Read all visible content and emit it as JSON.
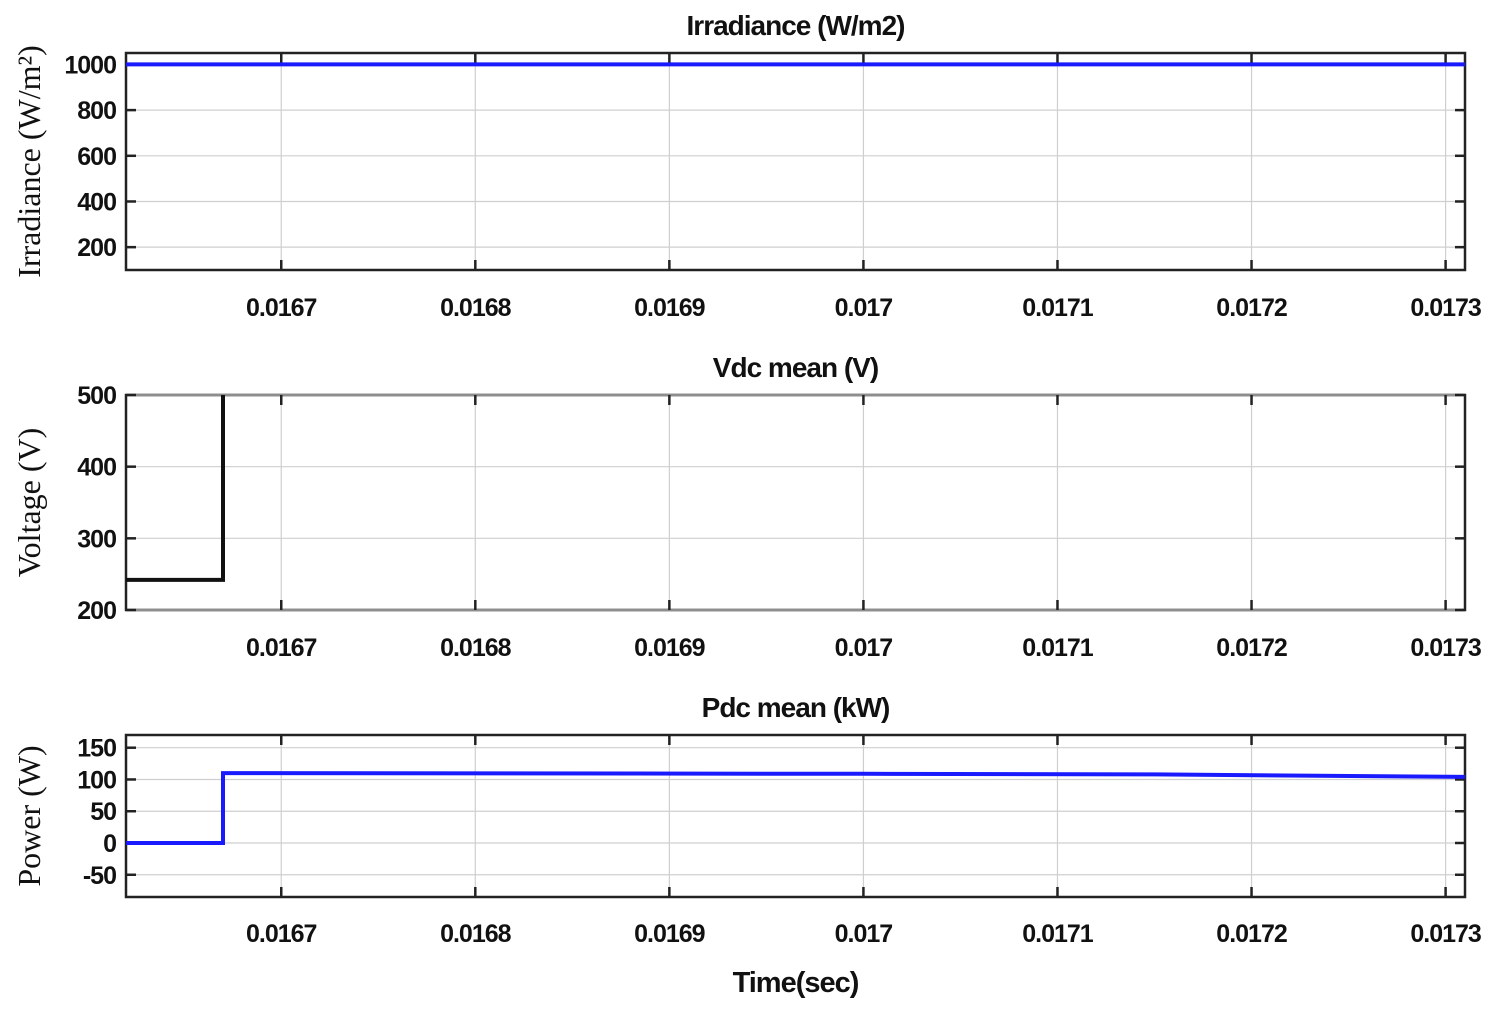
{
  "chart_data": [
    {
      "type": "line",
      "title": "Irradiance (W/m2)",
      "ylabel": "Irradiance (W/m²)",
      "xlabel": "",
      "xlim": [
        0.01662,
        0.01731
      ],
      "ylim": [
        100,
        1050
      ],
      "x_ticks": [
        "0.0167",
        "0.0168",
        "0.0169",
        "0.017",
        "0.0171",
        "0.0172",
        "0.0173"
      ],
      "x_tick_values": [
        0.0167,
        0.0168,
        0.0169,
        0.017,
        0.0171,
        0.0172,
        0.0173
      ],
      "y_ticks": [
        "200",
        "400",
        "600",
        "800",
        "1000"
      ],
      "y_tick_values": [
        200,
        400,
        600,
        800,
        1000
      ],
      "grid": true,
      "series": [
        {
          "color": "#1a1aff",
          "x": [
            0.01662,
            0.01731
          ],
          "y": [
            1000,
            1000
          ]
        }
      ]
    },
    {
      "type": "line",
      "title": "Vdc mean (V)",
      "ylabel": "Voltage (V)",
      "xlabel": "",
      "xlim": [
        0.01662,
        0.01731
      ],
      "ylim": [
        200,
        500
      ],
      "x_ticks": [
        "0.0167",
        "0.0168",
        "0.0169",
        "0.017",
        "0.0171",
        "0.0172",
        "0.0173"
      ],
      "x_tick_values": [
        0.0167,
        0.0168,
        0.0169,
        0.017,
        0.0171,
        0.0172,
        0.0173
      ],
      "y_ticks": [
        "200",
        "300",
        "400",
        "500"
      ],
      "y_tick_values": [
        200,
        300,
        400,
        500
      ],
      "grid": true,
      "series": [
        {
          "color": "#111111",
          "x": [
            0.01662,
            0.01667,
            0.01667
          ],
          "y": [
            242,
            242,
            500
          ]
        }
      ]
    },
    {
      "type": "line",
      "title": "Pdc mean (kW)",
      "ylabel": "Power (W)",
      "xlabel": "Time(sec)",
      "xlim": [
        0.01662,
        0.01731
      ],
      "ylim": [
        -85,
        170
      ],
      "x_ticks": [
        "0.0167",
        "0.0168",
        "0.0169",
        "0.017",
        "0.0171",
        "0.0172",
        "0.0173"
      ],
      "x_tick_values": [
        0.0167,
        0.0168,
        0.0169,
        0.017,
        0.0171,
        0.0172,
        0.0173
      ],
      "y_ticks": [
        "-50",
        "0",
        "50",
        "100",
        "150"
      ],
      "y_tick_values": [
        -50,
        0,
        50,
        100,
        150
      ],
      "grid": true,
      "series": [
        {
          "color": "#1a1aff",
          "x": [
            0.01662,
            0.01667,
            0.01667,
            0.017,
            0.01715,
            0.01731
          ],
          "y": [
            0,
            0,
            110,
            109,
            108,
            104
          ]
        }
      ]
    }
  ]
}
